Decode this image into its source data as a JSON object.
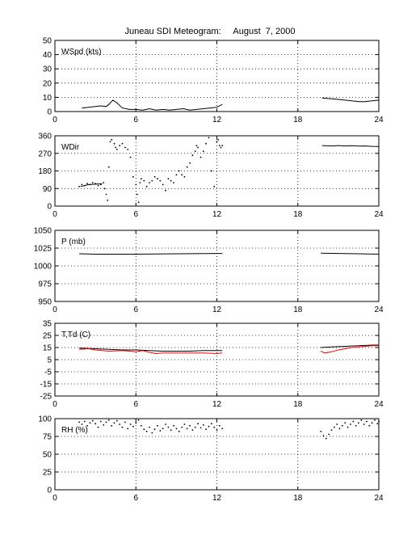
{
  "title": "Juneau SDI Meteogram:     August  7, 2000",
  "chart_data": [
    {
      "type": "line",
      "panel_label": "WSpd (kts)",
      "xlim": [
        0,
        24
      ],
      "xticks": [
        0,
        6,
        12,
        18,
        24
      ],
      "ylim": [
        0,
        50
      ],
      "yticks": [
        0,
        10,
        20,
        30,
        40,
        50
      ],
      "grid": true,
      "series": [
        {
          "color": "#000000",
          "style": "line",
          "segments": [
            [
              [
                2.0,
                2.5
              ],
              [
                2.5,
                3
              ],
              [
                3.0,
                3.5
              ],
              [
                3.4,
                4
              ],
              [
                3.8,
                3.5
              ],
              [
                4.0,
                5
              ],
              [
                4.3,
                8
              ],
              [
                4.6,
                6
              ],
              [
                5.0,
                2.5
              ],
              [
                5.5,
                1.5
              ],
              [
                6.0,
                1.5
              ],
              [
                6.5,
                1
              ],
              [
                7.0,
                2
              ],
              [
                7.5,
                1
              ],
              [
                8.0,
                1.5
              ],
              [
                8.5,
                1
              ],
              [
                9.0,
                1.5
              ],
              [
                9.5,
                2
              ],
              [
                10.0,
                1
              ],
              [
                10.5,
                1.5
              ],
              [
                11.0,
                2
              ],
              [
                11.5,
                2.5
              ],
              [
                12.0,
                3
              ],
              [
                12.4,
                5
              ]
            ],
            [
              [
                19.8,
                9.5
              ],
              [
                20.5,
                9
              ],
              [
                21.0,
                8.5
              ],
              [
                21.5,
                8
              ],
              [
                22.0,
                7.5
              ],
              [
                22.5,
                7
              ],
              [
                23.0,
                7
              ],
              [
                23.5,
                7.5
              ],
              [
                24.0,
                8
              ]
            ]
          ]
        }
      ]
    },
    {
      "type": "scatter",
      "panel_label": "WDir",
      "xlim": [
        0,
        24
      ],
      "xticks": [
        0,
        6,
        12,
        18,
        24
      ],
      "ylim": [
        0,
        360
      ],
      "yticks": [
        0,
        90,
        180,
        270,
        360
      ],
      "grid": true,
      "series": [
        {
          "color": "#000000",
          "style": "dots",
          "points": [
            [
              1.8,
              100
            ],
            [
              2.0,
              110
            ],
            [
              2.2,
              105
            ],
            [
              2.4,
              115
            ],
            [
              2.6,
              110
            ],
            [
              2.8,
              120
            ],
            [
              3.0,
              115
            ],
            [
              3.2,
              105
            ],
            [
              3.4,
              110
            ],
            [
              3.6,
              120
            ],
            [
              3.7,
              90
            ],
            [
              3.8,
              60
            ],
            [
              3.9,
              30
            ],
            [
              4.0,
              200
            ],
            [
              4.1,
              330
            ],
            [
              4.2,
              340
            ],
            [
              4.4,
              320
            ],
            [
              4.5,
              300
            ],
            [
              4.6,
              290
            ],
            [
              4.8,
              310
            ],
            [
              5.0,
              320
            ],
            [
              5.2,
              300
            ],
            [
              5.4,
              290
            ],
            [
              5.6,
              250
            ],
            [
              5.8,
              150
            ],
            [
              6.0,
              110
            ],
            [
              6.1,
              60
            ],
            [
              6.2,
              20
            ],
            [
              6.3,
              120
            ],
            [
              6.4,
              140
            ],
            [
              6.6,
              130
            ],
            [
              6.8,
              100
            ],
            [
              7.0,
              120
            ],
            [
              7.2,
              130
            ],
            [
              7.4,
              150
            ],
            [
              7.6,
              140
            ],
            [
              7.8,
              130
            ],
            [
              8.0,
              110
            ],
            [
              8.2,
              80
            ],
            [
              8.4,
              140
            ],
            [
              8.6,
              130
            ],
            [
              8.8,
              120
            ],
            [
              9.0,
              160
            ],
            [
              9.2,
              180
            ],
            [
              9.4,
              160
            ],
            [
              9.6,
              150
            ],
            [
              9.8,
              200
            ],
            [
              10.0,
              220
            ],
            [
              10.2,
              260
            ],
            [
              10.4,
              280
            ],
            [
              10.5,
              310
            ],
            [
              10.6,
              300
            ],
            [
              10.8,
              250
            ],
            [
              11.0,
              280
            ],
            [
              11.2,
              320
            ],
            [
              11.4,
              350
            ],
            [
              11.6,
              180
            ],
            [
              11.8,
              100
            ],
            [
              12.0,
              330
            ],
            [
              12.1,
              340
            ],
            [
              12.2,
              310
            ],
            [
              12.3,
              300
            ],
            [
              12.4,
              310
            ]
          ]
        },
        {
          "color": "#000000",
          "style": "line",
          "segments": [
            [
              [
                1.9,
                100
              ],
              [
                2.5,
                110
              ],
              [
                3.0,
                112
              ],
              [
                3.5,
                115
              ]
            ],
            [
              [
                19.8,
                310
              ],
              [
                20.5,
                308
              ],
              [
                21.0,
                310
              ],
              [
                21.5,
                308
              ],
              [
                22.0,
                309
              ],
              [
                22.5,
                307
              ],
              [
                23.0,
                308
              ],
              [
                23.5,
                306
              ],
              [
                24.0,
                305
              ]
            ]
          ]
        }
      ]
    },
    {
      "type": "line",
      "panel_label": "P (mb)",
      "xlim": [
        0,
        24
      ],
      "xticks": [
        0,
        6,
        12,
        18,
        24
      ],
      "ylim": [
        950,
        1050
      ],
      "yticks": [
        950,
        975,
        1000,
        1025,
        1050
      ],
      "grid": true,
      "series": [
        {
          "color": "#000000",
          "style": "line",
          "segments": [
            [
              [
                1.8,
                1017
              ],
              [
                3.0,
                1016.5
              ],
              [
                6.0,
                1016.5
              ],
              [
                9.0,
                1017
              ],
              [
                12.0,
                1017.5
              ],
              [
                12.4,
                1017.5
              ]
            ],
            [
              [
                19.7,
                1018
              ],
              [
                21.0,
                1017.5
              ],
              [
                22.5,
                1017
              ],
              [
                24.0,
                1016.5
              ]
            ]
          ]
        }
      ]
    },
    {
      "type": "line",
      "panel_label": "T,Td (C)",
      "xlim": [
        0,
        24
      ],
      "xticks": [
        0,
        6,
        12,
        18,
        24
      ],
      "ylim": [
        -25,
        35
      ],
      "yticks": [
        -25,
        -15,
        -5,
        5,
        15,
        25,
        35
      ],
      "grid": true,
      "series": [
        {
          "color": "#000000",
          "style": "line",
          "segments": [
            [
              [
                1.8,
                14.5
              ],
              [
                3.0,
                14
              ],
              [
                4.0,
                13.5
              ],
              [
                5.0,
                13
              ],
              [
                6.0,
                13
              ],
              [
                7.0,
                12.5
              ],
              [
                8.0,
                12
              ],
              [
                9.0,
                12
              ],
              [
                10.0,
                12
              ],
              [
                11.0,
                12.5
              ],
              [
                12.4,
                12.5
              ]
            ],
            [
              [
                19.7,
                15
              ],
              [
                20.5,
                15.5
              ],
              [
                21.5,
                16
              ],
              [
                22.5,
                16.5
              ],
              [
                23.5,
                17
              ],
              [
                24.0,
                17
              ]
            ]
          ]
        },
        {
          "color": "#ff0000",
          "style": "line",
          "segments": [
            [
              [
                1.8,
                13.5
              ],
              [
                2.5,
                14
              ],
              [
                3.0,
                13
              ],
              [
                4.0,
                12
              ],
              [
                5.0,
                12.5
              ],
              [
                6.0,
                11.5
              ],
              [
                6.5,
                12.5
              ],
              [
                7.0,
                11
              ],
              [
                7.5,
                10
              ],
              [
                8.0,
                10.5
              ],
              [
                9.0,
                10.5
              ],
              [
                10.0,
                10.5
              ],
              [
                11.0,
                10.5
              ],
              [
                12.0,
                10
              ],
              [
                12.4,
                10.5
              ]
            ],
            [
              [
                19.7,
                12
              ],
              [
                20.0,
                10.5
              ],
              [
                20.5,
                11.5
              ],
              [
                21.0,
                13
              ],
              [
                21.5,
                14
              ],
              [
                22.0,
                15
              ],
              [
                22.5,
                15.5
              ],
              [
                23.0,
                16
              ],
              [
                23.5,
                16.5
              ],
              [
                24.0,
                16.5
              ]
            ]
          ]
        }
      ]
    },
    {
      "type": "scatter",
      "panel_label": "RH (%)",
      "xlim": [
        0,
        24
      ],
      "xticks": [
        0,
        6,
        12,
        18,
        24
      ],
      "ylim": [
        0,
        100
      ],
      "yticks": [
        0,
        25,
        50,
        75,
        100
      ],
      "grid": true,
      "series": [
        {
          "color": "#000000",
          "style": "dots",
          "points": [
            [
              1.8,
              95
            ],
            [
              2.0,
              92
            ],
            [
              2.2,
              96
            ],
            [
              2.4,
              90
            ],
            [
              2.6,
              94
            ],
            [
              2.8,
              97
            ],
            [
              3.0,
              93
            ],
            [
              3.2,
              88
            ],
            [
              3.4,
              96
            ],
            [
              3.6,
              91
            ],
            [
              3.8,
              95
            ],
            [
              4.0,
              98
            ],
            [
              4.2,
              90
            ],
            [
              4.4,
              94
            ],
            [
              4.6,
              97
            ],
            [
              4.8,
              92
            ],
            [
              5.0,
              88
            ],
            [
              5.2,
              95
            ],
            [
              5.4,
              86
            ],
            [
              5.6,
              92
            ],
            [
              5.8,
              89
            ],
            [
              6.0,
              94
            ],
            [
              6.2,
              98
            ],
            [
              6.4,
              90
            ],
            [
              6.6,
              85
            ],
            [
              6.8,
              82
            ],
            [
              7.0,
              88
            ],
            [
              7.2,
              80
            ],
            [
              7.4,
              85
            ],
            [
              7.6,
              90
            ],
            [
              7.8,
              83
            ],
            [
              8.0,
              86
            ],
            [
              8.2,
              92
            ],
            [
              8.4,
              88
            ],
            [
              8.6,
              84
            ],
            [
              8.8,
              90
            ],
            [
              9.0,
              86
            ],
            [
              9.2,
              82
            ],
            [
              9.4,
              88
            ],
            [
              9.6,
              92
            ],
            [
              9.8,
              86
            ],
            [
              10.0,
              90
            ],
            [
              10.2,
              84
            ],
            [
              10.4,
              88
            ],
            [
              10.6,
              93
            ],
            [
              10.8,
              87
            ],
            [
              11.0,
              91
            ],
            [
              11.2,
              85
            ],
            [
              11.4,
              89
            ],
            [
              11.6,
              93
            ],
            [
              11.8,
              88
            ],
            [
              12.0,
              84
            ],
            [
              12.2,
              90
            ],
            [
              12.4,
              86
            ],
            [
              19.7,
              82
            ],
            [
              19.9,
              76
            ],
            [
              20.1,
              72
            ],
            [
              20.3,
              78
            ],
            [
              20.5,
              84
            ],
            [
              20.7,
              88
            ],
            [
              20.9,
              92
            ],
            [
              21.1,
              86
            ],
            [
              21.3,
              90
            ],
            [
              21.5,
              94
            ],
            [
              21.7,
              88
            ],
            [
              21.9,
              92
            ],
            [
              22.1,
              96
            ],
            [
              22.3,
              90
            ],
            [
              22.5,
              94
            ],
            [
              22.7,
              98
            ],
            [
              22.9,
              92
            ],
            [
              23.1,
              96
            ],
            [
              23.3,
              90
            ],
            [
              23.5,
              94
            ],
            [
              23.7,
              98
            ],
            [
              23.9,
              93
            ],
            [
              24.0,
              96
            ]
          ]
        }
      ]
    }
  ]
}
